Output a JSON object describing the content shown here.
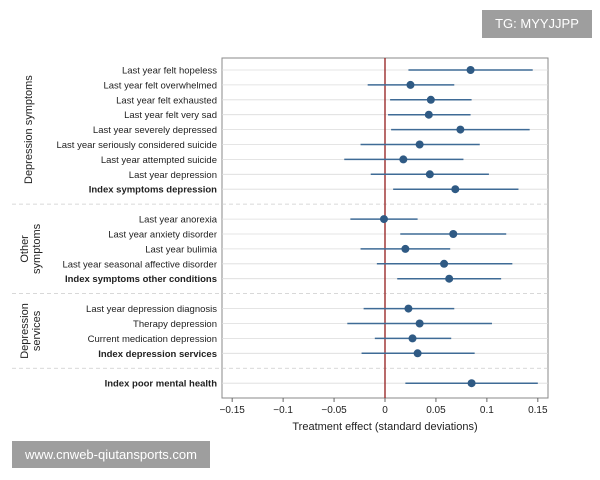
{
  "watermark_top": "TG: MYYJJPP",
  "watermark_bottom": "www.cnweb-qiutansports.com",
  "chart_data": {
    "type": "scatter",
    "subtype": "coefficient-plot-with-confidence-intervals",
    "xlabel": "Treatment effect (standard deviations)",
    "xlim": [
      -0.16,
      0.16
    ],
    "xticks": [
      -0.15,
      -0.1,
      -0.05,
      0,
      0.05,
      0.1,
      0.15
    ],
    "xtick_labels": [
      "−0.15",
      "−0.1",
      "−0.05",
      "0",
      "0.05",
      "0.1",
      "0.15"
    ],
    "reference_line": 0,
    "colors": {
      "point": "#2f5a84",
      "interval": "#3f6b96",
      "zero_line": "#9b2c2c",
      "grid": "#dcdcdc"
    },
    "groups": [
      {
        "label": "Depression symptoms",
        "rows": [
          {
            "label": "Last year felt hopeless",
            "estimate": 0.084,
            "low": 0.023,
            "high": 0.145,
            "bold": false
          },
          {
            "label": "Last year felt overwhelmed",
            "estimate": 0.025,
            "low": -0.017,
            "high": 0.068,
            "bold": false
          },
          {
            "label": "Last year felt exhausted",
            "estimate": 0.045,
            "low": 0.005,
            "high": 0.085,
            "bold": false
          },
          {
            "label": "Last year felt very sad",
            "estimate": 0.043,
            "low": 0.003,
            "high": 0.084,
            "bold": false
          },
          {
            "label": "Last year severely depressed",
            "estimate": 0.074,
            "low": 0.006,
            "high": 0.142,
            "bold": false
          },
          {
            "label": "Last year seriously considered suicide",
            "estimate": 0.034,
            "low": -0.024,
            "high": 0.093,
            "bold": false
          },
          {
            "label": "Last year attempted suicide",
            "estimate": 0.018,
            "low": -0.04,
            "high": 0.077,
            "bold": false
          },
          {
            "label": "Last year depression",
            "estimate": 0.044,
            "low": -0.014,
            "high": 0.102,
            "bold": false
          },
          {
            "label": "Index symptoms depression",
            "estimate": 0.069,
            "low": 0.008,
            "high": 0.131,
            "bold": true
          }
        ]
      },
      {
        "label": "Other symptoms",
        "label_lines": [
          "Other",
          "symptoms"
        ],
        "rows": [
          {
            "label": "Last year anorexia",
            "estimate": -0.001,
            "low": -0.034,
            "high": 0.032,
            "bold": false
          },
          {
            "label": "Last year anxiety disorder",
            "estimate": 0.067,
            "low": 0.015,
            "high": 0.119,
            "bold": false
          },
          {
            "label": "Last year bulimia",
            "estimate": 0.02,
            "low": -0.024,
            "high": 0.064,
            "bold": false
          },
          {
            "label": "Last year seasonal affective disorder",
            "estimate": 0.058,
            "low": -0.008,
            "high": 0.125,
            "bold": false
          },
          {
            "label": "Index symptoms other conditions",
            "estimate": 0.063,
            "low": 0.012,
            "high": 0.114,
            "bold": true
          }
        ]
      },
      {
        "label": "Depression services",
        "label_lines": [
          "Depression",
          "services"
        ],
        "rows": [
          {
            "label": "Last year depression diagnosis",
            "estimate": 0.023,
            "low": -0.021,
            "high": 0.068,
            "bold": false
          },
          {
            "label": "Therapy depression",
            "estimate": 0.034,
            "low": -0.037,
            "high": 0.105,
            "bold": false
          },
          {
            "label": "Current medication depression",
            "estimate": 0.027,
            "low": -0.01,
            "high": 0.065,
            "bold": false
          },
          {
            "label": "Index depression services",
            "estimate": 0.032,
            "low": -0.023,
            "high": 0.088,
            "bold": true
          }
        ]
      },
      {
        "label": "",
        "rows": [
          {
            "label": "Index poor mental health",
            "estimate": 0.085,
            "low": 0.02,
            "high": 0.15,
            "bold": true
          }
        ]
      }
    ]
  }
}
